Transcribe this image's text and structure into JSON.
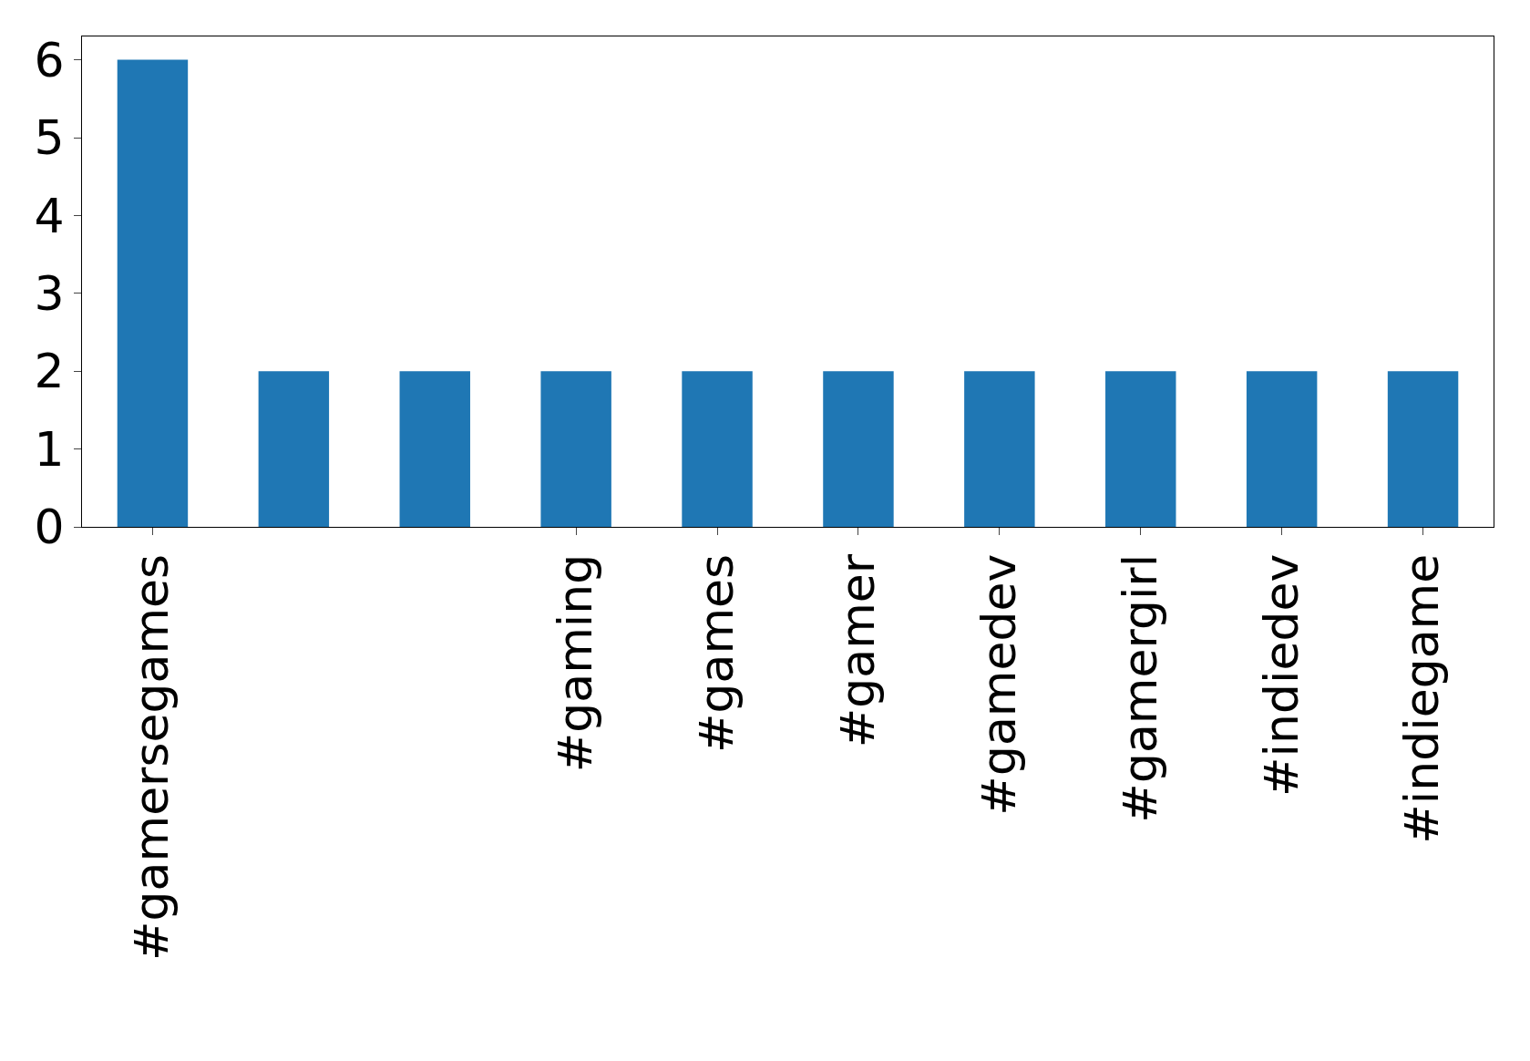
{
  "chart_data": {
    "type": "bar",
    "categories": [
      "#gamersegames",
      null,
      null,
      "#gaming",
      "#games",
      "#gamer",
      "#gamedev",
      "#gamergirl",
      "#indiedev",
      "#indiegame"
    ],
    "values": [
      6,
      2,
      2,
      2,
      2,
      2,
      2,
      2,
      2,
      2
    ],
    "color": "#1f77b4",
    "ylim": [
      0,
      6.3
    ],
    "yticks": [
      0,
      1,
      2,
      3,
      4,
      5,
      6
    ],
    "grid": false,
    "legend": false
  }
}
